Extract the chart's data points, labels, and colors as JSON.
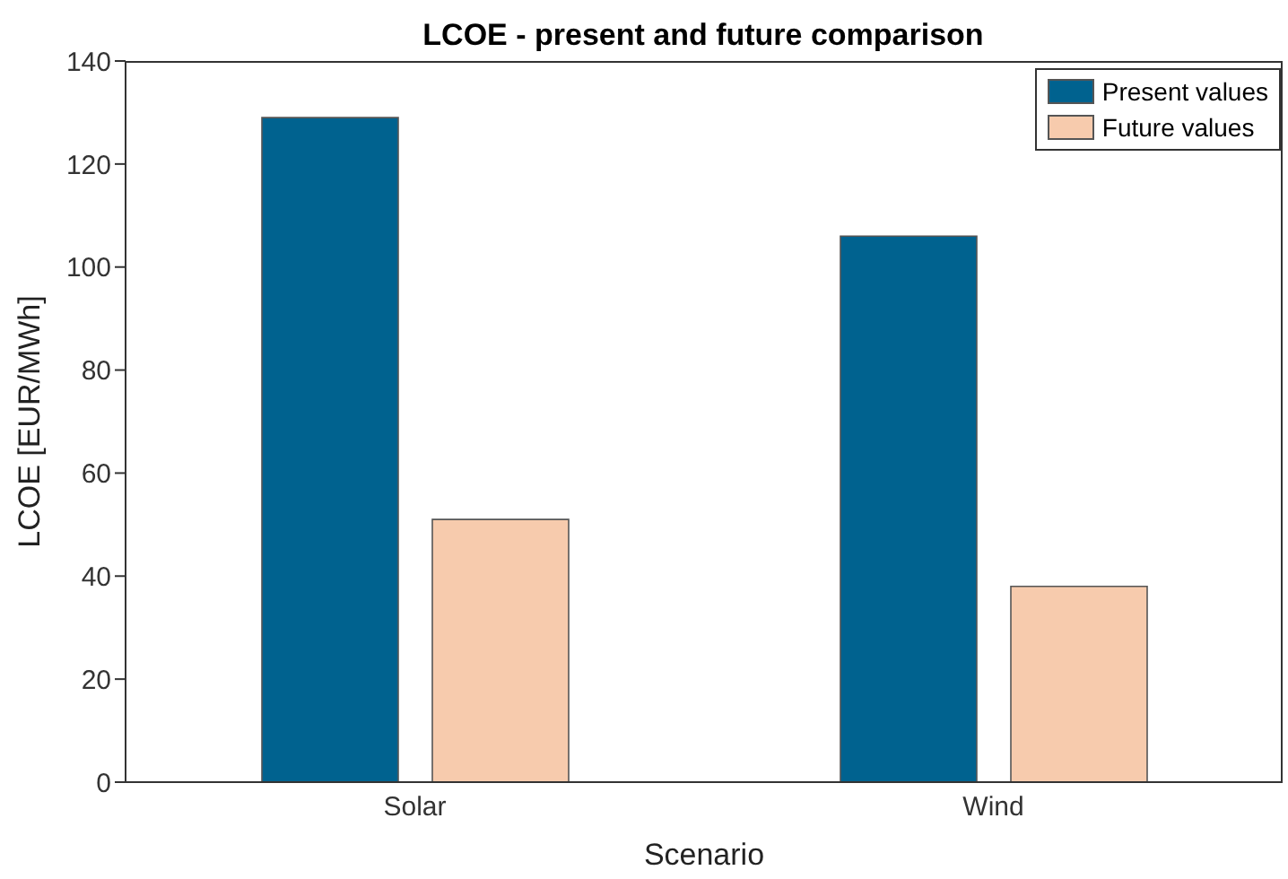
{
  "chart_data": {
    "type": "bar",
    "title": "LCOE - present and future comparison",
    "xlabel": "Scenario",
    "ylabel": "LCOE [EUR/MWh]",
    "categories": [
      "Solar",
      "Wind"
    ],
    "series": [
      {
        "name": "Present values",
        "color": "#00628f",
        "values": [
          129,
          106
        ]
      },
      {
        "name": "Future values",
        "color": "#f7cbad",
        "values": [
          51,
          38
        ]
      }
    ],
    "ylim": [
      0,
      140
    ],
    "yticks": [
      0,
      20,
      40,
      60,
      80,
      100,
      120,
      140
    ],
    "legend": "top right"
  }
}
